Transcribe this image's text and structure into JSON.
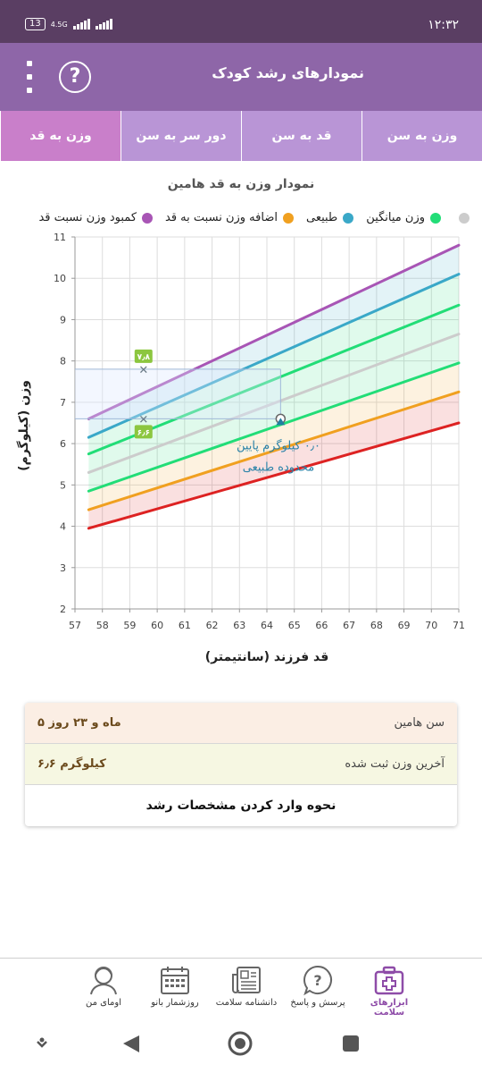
{
  "status_bar": {
    "battery": "13",
    "network": "4.5G",
    "time": "۱۲:۳۲"
  },
  "app_bar": {
    "title": "نمودارهای رشد کودک",
    "help_icon": "question-circle-icon",
    "menu_icon": "more-vertical-icon"
  },
  "tabs": [
    {
      "label": "وزن به سن",
      "active": false
    },
    {
      "label": "قد به سن",
      "active": false
    },
    {
      "label": "دور سر به سن",
      "active": false
    },
    {
      "label": "وزن به قد",
      "active": true
    }
  ],
  "chart_title": "نمودار وزن به قد هامین",
  "legend": [
    {
      "label": "کمبود وزن نسبت قد",
      "color": "#a855b5"
    },
    {
      "label": "اضافه وزن نسبت به قد",
      "color": "#f0a020"
    },
    {
      "label": "طبیعی",
      "color": "#3aa8c8"
    },
    {
      "label": "وزن میانگین",
      "color": "#22dd77"
    },
    {
      "label": "",
      "color": "#cccccc"
    }
  ],
  "chart_data": {
    "type": "line",
    "xlabel": "قد فرزند (سانتیمتر)",
    "ylabel": "وزن (کیلوگرم)",
    "xlim": [
      57,
      71
    ],
    "ylim": [
      2,
      11
    ],
    "x_ticks": [
      "57",
      "58",
      "59",
      "60",
      "61",
      "62",
      "63",
      "64",
      "65",
      "66",
      "67",
      "68",
      "69",
      "70",
      "71"
    ],
    "y_ticks": [
      "2",
      "3",
      "4",
      "5",
      "6",
      "7",
      "8",
      "9",
      "10",
      "11"
    ],
    "grid": true,
    "x": [
      57.5,
      71
    ],
    "series": [
      {
        "color": "#a855b5",
        "values": [
          6.6,
          10.8
        ]
      },
      {
        "color": "#3aa8c8",
        "values": [
          6.15,
          10.1
        ]
      },
      {
        "color": "#22dd77",
        "values": [
          5.75,
          9.35
        ]
      },
      {
        "color": "#cccccc",
        "values": [
          5.3,
          8.65
        ]
      },
      {
        "color": "#22dd77",
        "values": [
          4.85,
          7.95
        ]
      },
      {
        "color": "#f0a020",
        "values": [
          4.4,
          7.25
        ]
      },
      {
        "color": "#dd2222",
        "values": [
          3.95,
          6.5
        ]
      }
    ],
    "markers": [
      {
        "x": 59.5,
        "y": 7.8,
        "label": "۷٫۸"
      },
      {
        "x": 59.5,
        "y": 6.6,
        "label": "۶٫۶"
      }
    ],
    "current_point": {
      "x": 64.5,
      "y": 6.6
    },
    "annotation": [
      "۰٫۰ کیلوگرم پایین",
      "محدوده طبیعی"
    ]
  },
  "info": {
    "age_label": "سن هامین",
    "age_value": "۵ ماه و ۲۳ روز",
    "weight_label": "آخرین وزن ثبت شده",
    "weight_value": "۶٫۶ کیلوگرم",
    "how_to_link": "نحوه وارد کردن مشخصات رشد"
  },
  "bottom_nav": [
    {
      "label": "ابزارهای سلامت",
      "icon": "medical-kit-icon",
      "active": true
    },
    {
      "label": "پرسش و پاسخ",
      "icon": "question-bubble-icon",
      "active": false
    },
    {
      "label": "دانشنامه سلامت",
      "icon": "newspaper-icon",
      "active": false
    },
    {
      "label": "روزشمار بانو",
      "icon": "calendar-icon",
      "active": false
    },
    {
      "label": "اومای من",
      "icon": "user-avatar-icon",
      "active": false
    }
  ]
}
